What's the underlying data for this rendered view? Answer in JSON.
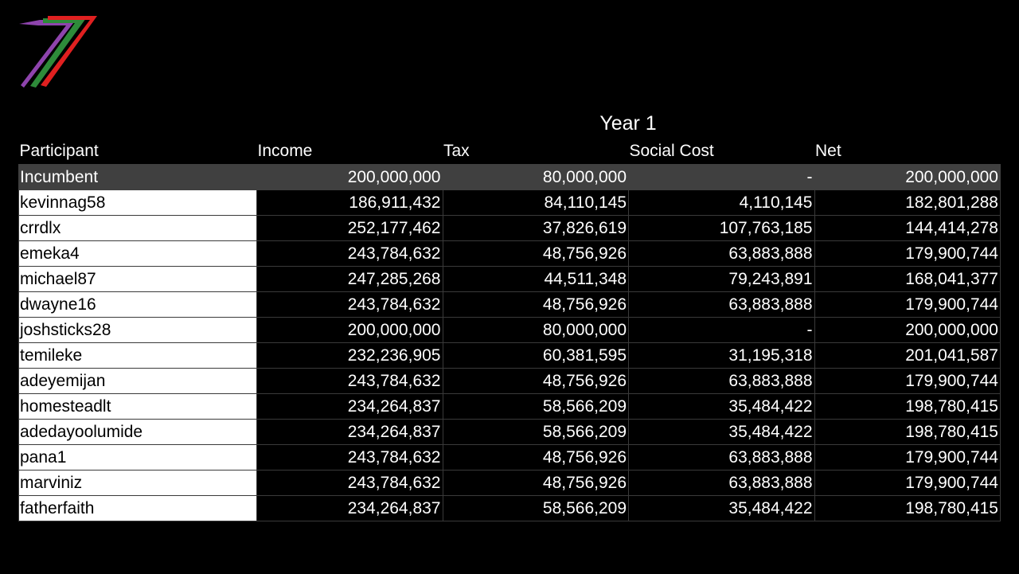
{
  "colors": {
    "background": "#000000",
    "header_text": "#ffffff",
    "highlight_row": "#404040",
    "name_cell_bg": "#ffffff",
    "logo_purple": "#8e44ad",
    "logo_green": "#2e8b3a",
    "logo_red": "#e02020"
  },
  "logo": {
    "icon": "stripe-seven-logo-icon"
  },
  "title": "Year 1",
  "columns": [
    "Participant",
    "Income",
    "Tax",
    "Social Cost",
    "Net"
  ],
  "rows": [
    {
      "participant": "Incumbent",
      "income": "200,000,000",
      "tax": "80,000,000",
      "social_cost": "-",
      "net": "200,000,000"
    },
    {
      "participant": "kevinnag58",
      "income": "186,911,432",
      "tax": "84,110,145",
      "social_cost": "4,110,145",
      "net": "182,801,288"
    },
    {
      "participant": "crrdlx",
      "income": "252,177,462",
      "tax": "37,826,619",
      "social_cost": "107,763,185",
      "net": "144,414,278"
    },
    {
      "participant": "emeka4",
      "income": "243,784,632",
      "tax": "48,756,926",
      "social_cost": "63,883,888",
      "net": "179,900,744"
    },
    {
      "participant": "michael87",
      "income": "247,285,268",
      "tax": "44,511,348",
      "social_cost": "79,243,891",
      "net": "168,041,377"
    },
    {
      "participant": "dwayne16",
      "income": "243,784,632",
      "tax": "48,756,926",
      "social_cost": "63,883,888",
      "net": "179,900,744"
    },
    {
      "participant": "joshsticks28",
      "income": "200,000,000",
      "tax": "80,000,000",
      "social_cost": "-",
      "net": "200,000,000"
    },
    {
      "participant": "temileke",
      "income": "232,236,905",
      "tax": "60,381,595",
      "social_cost": "31,195,318",
      "net": "201,041,587"
    },
    {
      "participant": "adeyemijan",
      "income": "243,784,632",
      "tax": "48,756,926",
      "social_cost": "63,883,888",
      "net": "179,900,744"
    },
    {
      "participant": "homesteadlt",
      "income": "234,264,837",
      "tax": "58,566,209",
      "social_cost": "35,484,422",
      "net": "198,780,415"
    },
    {
      "participant": "adedayoolumide",
      "income": "234,264,837",
      "tax": "58,566,209",
      "social_cost": "35,484,422",
      "net": "198,780,415"
    },
    {
      "participant": "pana1",
      "income": "243,784,632",
      "tax": "48,756,926",
      "social_cost": "63,883,888",
      "net": "179,900,744"
    },
    {
      "participant": "marviniz",
      "income": "243,784,632",
      "tax": "48,756,926",
      "social_cost": "63,883,888",
      "net": "179,900,744"
    },
    {
      "participant": "fatherfaith",
      "income": "234,264,837",
      "tax": "58,566,209",
      "social_cost": "35,484,422",
      "net": "198,780,415"
    }
  ]
}
